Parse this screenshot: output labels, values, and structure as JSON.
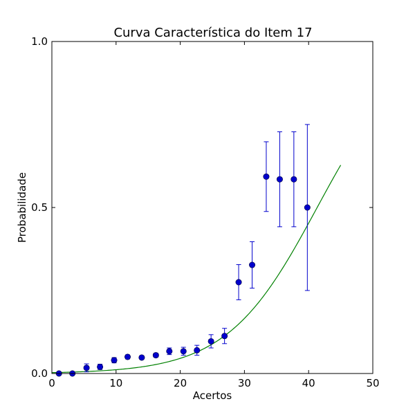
{
  "chart_data": {
    "type": "scatter",
    "title": "Curva Característica do Item 17",
    "xlabel": "Acertos",
    "ylabel": "Probabilidade",
    "xlim": [
      0,
      50
    ],
    "ylim": [
      0,
      1
    ],
    "x_ticks": [
      0,
      10,
      20,
      30,
      40,
      50
    ],
    "x_tick_labels": [
      "0",
      "10",
      "20",
      "30",
      "40",
      "50"
    ],
    "y_ticks": [
      0,
      0.5,
      1
    ],
    "y_tick_labels": [
      "0.0",
      "0.5",
      "1.0"
    ],
    "grid": false,
    "series": [
      {
        "kind": "errorbar-points",
        "color": "#0000cc",
        "points": [
          {
            "x": 1.1,
            "y": 0.0,
            "err": 0.0
          },
          {
            "x": 3.2,
            "y": 0.0,
            "err": 0.0
          },
          {
            "x": 5.4,
            "y": 0.017,
            "err": 0.012
          },
          {
            "x": 7.5,
            "y": 0.02,
            "err": 0.008
          },
          {
            "x": 9.7,
            "y": 0.04,
            "err": 0.008
          },
          {
            "x": 11.8,
            "y": 0.05,
            "err": 0.006
          },
          {
            "x": 14.0,
            "y": 0.048,
            "err": 0.005
          },
          {
            "x": 16.2,
            "y": 0.055,
            "err": 0.006
          },
          {
            "x": 18.3,
            "y": 0.067,
            "err": 0.01
          },
          {
            "x": 20.5,
            "y": 0.067,
            "err": 0.012
          },
          {
            "x": 22.6,
            "y": 0.07,
            "err": 0.015
          },
          {
            "x": 24.8,
            "y": 0.097,
            "err": 0.02
          },
          {
            "x": 26.9,
            "y": 0.113,
            "err": 0.023
          },
          {
            "x": 29.1,
            "y": 0.275,
            "err": 0.053
          },
          {
            "x": 31.2,
            "y": 0.327,
            "err": 0.07
          },
          {
            "x": 33.4,
            "y": 0.593,
            "err": 0.105
          },
          {
            "x": 35.5,
            "y": 0.585,
            "err": 0.143
          },
          {
            "x": 37.7,
            "y": 0.585,
            "err": 0.143
          },
          {
            "x": 39.8,
            "y": 0.5,
            "err": 0.25
          }
        ]
      },
      {
        "kind": "logistic-curve",
        "color": "#008000",
        "x_range": [
          0,
          45
        ],
        "a": 0.1425,
        "b": 41.33,
        "c": 0.0
      }
    ]
  }
}
